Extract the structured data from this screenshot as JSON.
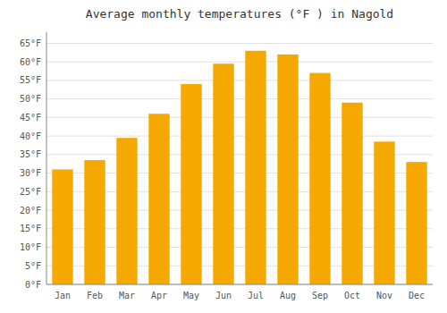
{
  "chart_data": {
    "type": "bar",
    "title": "Average monthly temperatures (°F ) in Nagold",
    "categories": [
      "Jan",
      "Feb",
      "Mar",
      "Apr",
      "May",
      "Jun",
      "Jul",
      "Aug",
      "Sep",
      "Oct",
      "Nov",
      "Dec"
    ],
    "values": [
      31,
      33.5,
      39.5,
      46,
      54,
      59.5,
      63,
      62,
      57,
      49,
      38.5,
      33
    ],
    "color": "#F5A800",
    "ylim": [
      0,
      68
    ],
    "yticks": [
      {
        "value": 0,
        "label": "0°F"
      },
      {
        "value": 5,
        "label": "5°F"
      },
      {
        "value": 10,
        "label": "10°F"
      },
      {
        "value": 15,
        "label": "15°F"
      },
      {
        "value": 20,
        "label": "20°F"
      },
      {
        "value": 25,
        "label": "25°F"
      },
      {
        "value": 30,
        "label": "30°F"
      },
      {
        "value": 35,
        "label": "35°F"
      },
      {
        "value": 40,
        "label": "40°F"
      },
      {
        "value": 45,
        "label": "45°F"
      },
      {
        "value": 50,
        "label": "50°F"
      },
      {
        "value": 55,
        "label": "55°F"
      },
      {
        "value": 60,
        "label": "60°F"
      },
      {
        "value": 65,
        "label": "65°F"
      }
    ],
    "grid": true
  }
}
